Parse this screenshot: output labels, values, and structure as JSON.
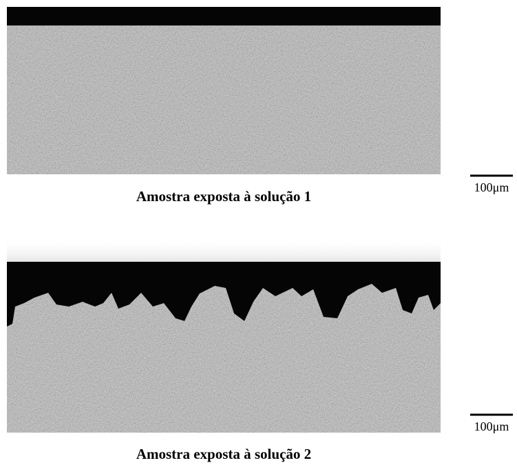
{
  "panels": [
    {
      "caption": "Amostra exposta à solução 1",
      "scale_label": "100μm"
    },
    {
      "caption": "Amostra exposta à solução 2",
      "scale_label": "100μm"
    }
  ]
}
